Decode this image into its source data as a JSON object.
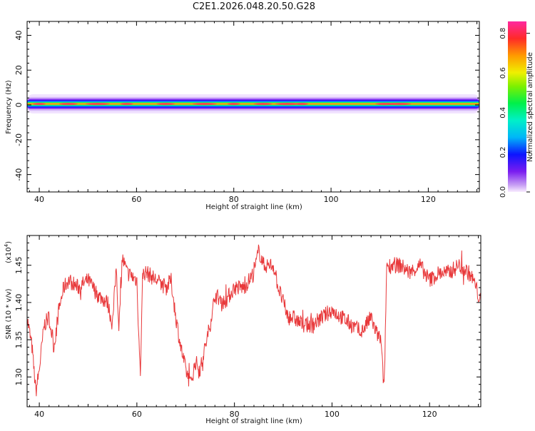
{
  "page": {
    "title": "C2E1.2026.048.20.50.G28"
  },
  "chart_data": [
    {
      "type": "heatmap",
      "xlabel": "Height of straight line (km)",
      "ylabel": "Frequency (Hz)",
      "xlim": [
        37.5,
        130.5
      ],
      "ylim": [
        -50,
        48
      ],
      "xticks": [
        40,
        60,
        80,
        100,
        120
      ],
      "yticks": [
        -40,
        -20,
        0,
        20,
        40
      ],
      "band_center_hz": 0.6,
      "band_halfwidth_hz": 4,
      "peak_amplitude": 0.85,
      "colorbar": {
        "label": "Normalized spectral amplitude",
        "range": [
          0,
          0.86
        ],
        "ticks": [
          0.0,
          0.2,
          0.4,
          0.6,
          0.8
        ],
        "tick_labels": [
          "0.0",
          "0.2",
          "0.4",
          "0.6",
          "0.8"
        ]
      }
    },
    {
      "type": "line",
      "xlabel": "Height of straight line (km)",
      "ylabel": "SNR (10 * v/v)",
      "y_scale_label": "(x10",
      "y_scale_exp": "4",
      "y_scale_close": ")",
      "xlim": [
        37.5,
        130.5
      ],
      "ylim": [
        1.26,
        1.49
      ],
      "xticks": [
        40,
        60,
        80,
        100,
        120
      ],
      "yticks": [
        1.3,
        1.35,
        1.4,
        1.45
      ],
      "ytick_labels": [
        "1.30",
        "1.35",
        "1.40",
        "1.45"
      ],
      "line_color": "#e8383a",
      "x": [
        37.5,
        38.5,
        39.3,
        40,
        41,
        42,
        43,
        44,
        45,
        46,
        48,
        50,
        52,
        54,
        55,
        55.8,
        56.3,
        57,
        58,
        60,
        60.7,
        61.2,
        62,
        64,
        66,
        67,
        68,
        69,
        70,
        71,
        72,
        73,
        74,
        75,
        76,
        78,
        80,
        82,
        84,
        85,
        86,
        88,
        89,
        90,
        91,
        92,
        94,
        96,
        98,
        100,
        102,
        104,
        106,
        108,
        109,
        110,
        110.7,
        111.2,
        112,
        114,
        116,
        118,
        120,
        122,
        124,
        126,
        128,
        129,
        130.5
      ],
      "y": [
        1.38,
        1.34,
        1.28,
        1.31,
        1.37,
        1.38,
        1.34,
        1.39,
        1.42,
        1.43,
        1.42,
        1.43,
        1.41,
        1.4,
        1.37,
        1.45,
        1.36,
        1.46,
        1.44,
        1.43,
        1.3,
        1.44,
        1.44,
        1.43,
        1.42,
        1.43,
        1.38,
        1.34,
        1.31,
        1.29,
        1.32,
        1.31,
        1.34,
        1.37,
        1.41,
        1.4,
        1.42,
        1.42,
        1.44,
        1.47,
        1.45,
        1.45,
        1.42,
        1.4,
        1.38,
        1.38,
        1.37,
        1.37,
        1.38,
        1.39,
        1.38,
        1.37,
        1.36,
        1.38,
        1.36,
        1.35,
        1.28,
        1.45,
        1.45,
        1.45,
        1.44,
        1.45,
        1.43,
        1.44,
        1.44,
        1.45,
        1.44,
        1.43,
        1.4
      ]
    }
  ]
}
